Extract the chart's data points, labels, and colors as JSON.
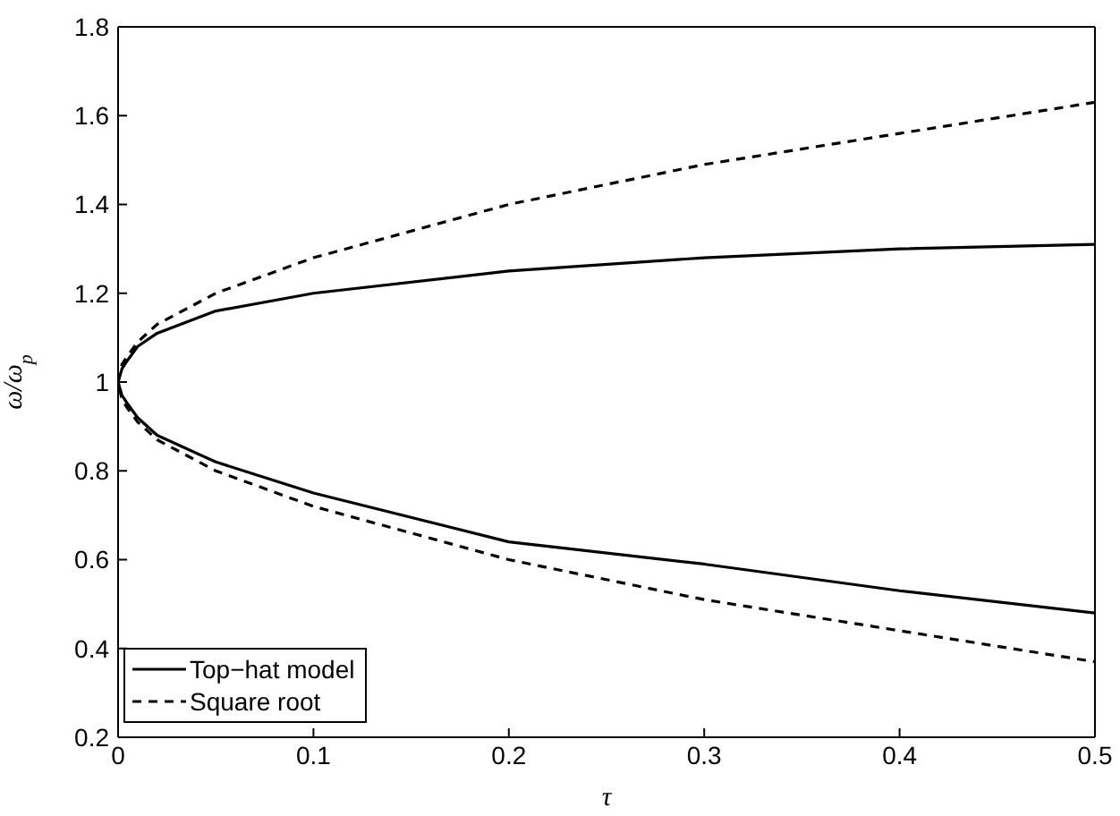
{
  "chart_data": {
    "type": "line",
    "xlabel": "τ",
    "ylabel": "ω/ω$_{p}$",
    "xlim": [
      0,
      0.5
    ],
    "xticks": [
      0,
      0.1,
      0.2,
      0.3,
      0.4,
      0.5
    ],
    "ylim": [
      0.2,
      1.8
    ],
    "yticks": [
      0.2,
      0.4,
      0.6,
      0.8,
      1,
      1.2,
      1.4,
      1.6,
      1.8
    ],
    "legend": "bottom left",
    "marker": "none",
    "series": [
      {
        "name": "Top−hat model",
        "color": "#000000",
        "line_style": "solid",
        "x": [
          0.5,
          0.4,
          0.3,
          0.2,
          0.1,
          0.05,
          0.02,
          0.01,
          0.005,
          0.002,
          0,
          0.002,
          0.005,
          0.01,
          0.02,
          0.05,
          0.1,
          0.2,
          0.3,
          0.4,
          0.5
        ],
        "values": [
          1.31,
          1.3,
          1.28,
          1.25,
          1.2,
          1.16,
          1.11,
          1.08,
          1.05,
          1.03,
          1,
          0.97,
          0.95,
          0.92,
          0.88,
          0.82,
          0.75,
          0.64,
          0.59,
          0.53,
          0.48
        ]
      },
      {
        "name": "Square root",
        "color": "#000000",
        "line_style": "dashed",
        "x": [
          0.5,
          0.4,
          0.3,
          0.2,
          0.1,
          0.05,
          0.02,
          0.01,
          0.005,
          0.002,
          0,
          0.002,
          0.005,
          0.01,
          0.02,
          0.05,
          0.1,
          0.2,
          0.3,
          0.4,
          0.5
        ],
        "values": [
          1.63,
          1.56,
          1.49,
          1.4,
          1.28,
          1.2,
          1.13,
          1.09,
          1.06,
          1.04,
          1,
          0.96,
          0.94,
          0.91,
          0.87,
          0.8,
          0.72,
          0.6,
          0.51,
          0.44,
          0.37
        ]
      }
    ]
  }
}
